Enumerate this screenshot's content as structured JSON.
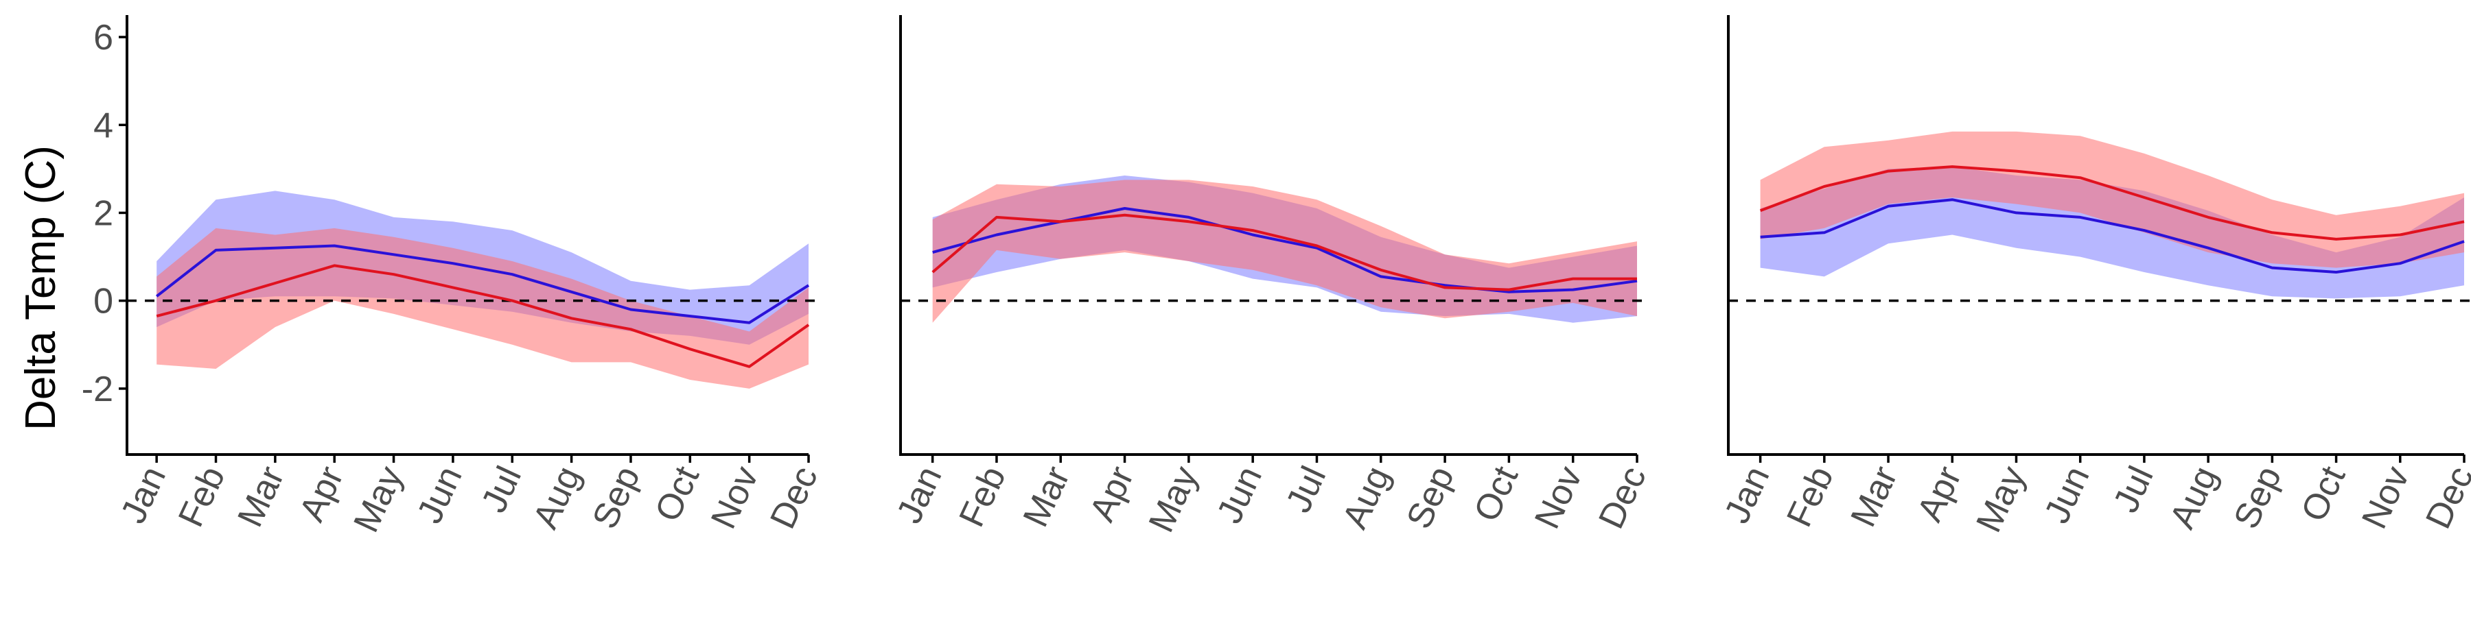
{
  "ylabel": "Delta Temp (C)",
  "colors": {
    "blue_line": "#2a12d8",
    "red_line": "#e0121f",
    "blue_band": "#7b7bff",
    "red_band": "#ff6f6f",
    "axis": "#000000",
    "tick_text": "#4d4d4d"
  },
  "chart_data": [
    {
      "type": "line",
      "ylabel": "Delta Temp (C)",
      "ylim": [
        -3.5,
        6.5
      ],
      "y_ticks": [
        "6",
        "4",
        "2",
        "0",
        "-2"
      ],
      "categories": [
        "Jan",
        "Feb",
        "Mar",
        "Apr",
        "May",
        "Jun",
        "Jul",
        "Aug",
        "Sep",
        "Oct",
        "Nov",
        "Dec"
      ],
      "reference_line": 0,
      "grid": false,
      "series": [
        {
          "color": "blue",
          "values": [
            0.1,
            1.15,
            1.2,
            1.25,
            1.05,
            0.85,
            0.6,
            0.2,
            -0.2,
            -0.35,
            -0.5,
            0.35
          ],
          "lower": [
            -0.6,
            0.0,
            0.1,
            0.1,
            0.05,
            -0.1,
            -0.25,
            -0.5,
            -0.7,
            -0.8,
            -1.0,
            -0.3
          ],
          "upper": [
            0.9,
            2.3,
            2.5,
            2.3,
            1.9,
            1.8,
            1.6,
            1.1,
            0.45,
            0.25,
            0.35,
            1.3
          ]
        },
        {
          "color": "red",
          "values": [
            -0.35,
            0.0,
            0.4,
            0.8,
            0.6,
            0.3,
            0.0,
            -0.4,
            -0.65,
            -1.1,
            -1.5,
            -0.55
          ],
          "lower": [
            -1.45,
            -1.55,
            -0.6,
            0.0,
            -0.3,
            -0.65,
            -1.0,
            -1.4,
            -1.4,
            -1.8,
            -2.0,
            -1.45
          ],
          "upper": [
            0.55,
            1.65,
            1.5,
            1.65,
            1.45,
            1.2,
            0.9,
            0.5,
            0.0,
            -0.35,
            -0.7,
            0.3
          ]
        }
      ]
    },
    {
      "type": "line",
      "ylim": [
        -3.5,
        6.5
      ],
      "categories": [
        "Jan",
        "Feb",
        "Mar",
        "Apr",
        "May",
        "Jun",
        "Jul",
        "Aug",
        "Sep",
        "Oct",
        "Nov",
        "Dec"
      ],
      "reference_line": 0,
      "grid": false,
      "series": [
        {
          "color": "blue",
          "values": [
            1.1,
            1.5,
            1.8,
            2.1,
            1.9,
            1.5,
            1.2,
            0.55,
            0.35,
            0.2,
            0.25,
            0.45
          ],
          "lower": [
            0.3,
            0.65,
            0.95,
            1.15,
            0.9,
            0.5,
            0.3,
            -0.25,
            -0.35,
            -0.3,
            -0.5,
            -0.35
          ],
          "upper": [
            1.9,
            2.3,
            2.65,
            2.85,
            2.7,
            2.45,
            2.1,
            1.45,
            1.05,
            0.75,
            1.0,
            1.25
          ]
        },
        {
          "color": "red",
          "values": [
            0.65,
            1.9,
            1.8,
            1.95,
            1.8,
            1.6,
            1.25,
            0.7,
            0.3,
            0.25,
            0.5,
            0.5
          ],
          "lower": [
            -0.5,
            1.15,
            0.95,
            1.1,
            0.9,
            0.7,
            0.35,
            -0.15,
            -0.4,
            -0.25,
            -0.05,
            -0.35
          ],
          "upper": [
            1.85,
            2.65,
            2.6,
            2.75,
            2.75,
            2.6,
            2.3,
            1.7,
            1.05,
            0.85,
            1.1,
            1.35
          ]
        }
      ]
    },
    {
      "type": "line",
      "ylim": [
        -3.5,
        6.5
      ],
      "categories": [
        "Jan",
        "Feb",
        "Mar",
        "Apr",
        "May",
        "Jun",
        "Jul",
        "Aug",
        "Sep",
        "Oct",
        "Nov",
        "Dec"
      ],
      "reference_line": 0,
      "grid": false,
      "series": [
        {
          "color": "blue",
          "values": [
            1.45,
            1.55,
            2.15,
            2.3,
            2.0,
            1.9,
            1.6,
            1.2,
            0.75,
            0.65,
            0.85,
            1.35
          ],
          "lower": [
            0.75,
            0.55,
            1.3,
            1.5,
            1.2,
            1.0,
            0.65,
            0.35,
            0.1,
            0.05,
            0.1,
            0.35
          ],
          "upper": [
            2.1,
            2.55,
            3.0,
            3.05,
            2.85,
            2.75,
            2.5,
            2.05,
            1.5,
            1.1,
            1.45,
            2.35
          ]
        },
        {
          "color": "red",
          "values": [
            2.05,
            2.6,
            2.95,
            3.05,
            2.95,
            2.8,
            2.35,
            1.9,
            1.55,
            1.4,
            1.5,
            1.8
          ],
          "lower": [
            1.4,
            1.65,
            2.2,
            2.35,
            2.2,
            2.0,
            1.55,
            1.1,
            0.85,
            0.75,
            0.85,
            1.1
          ],
          "upper": [
            2.75,
            3.5,
            3.65,
            3.85,
            3.85,
            3.75,
            3.35,
            2.85,
            2.3,
            1.95,
            2.15,
            2.45
          ]
        }
      ]
    }
  ]
}
